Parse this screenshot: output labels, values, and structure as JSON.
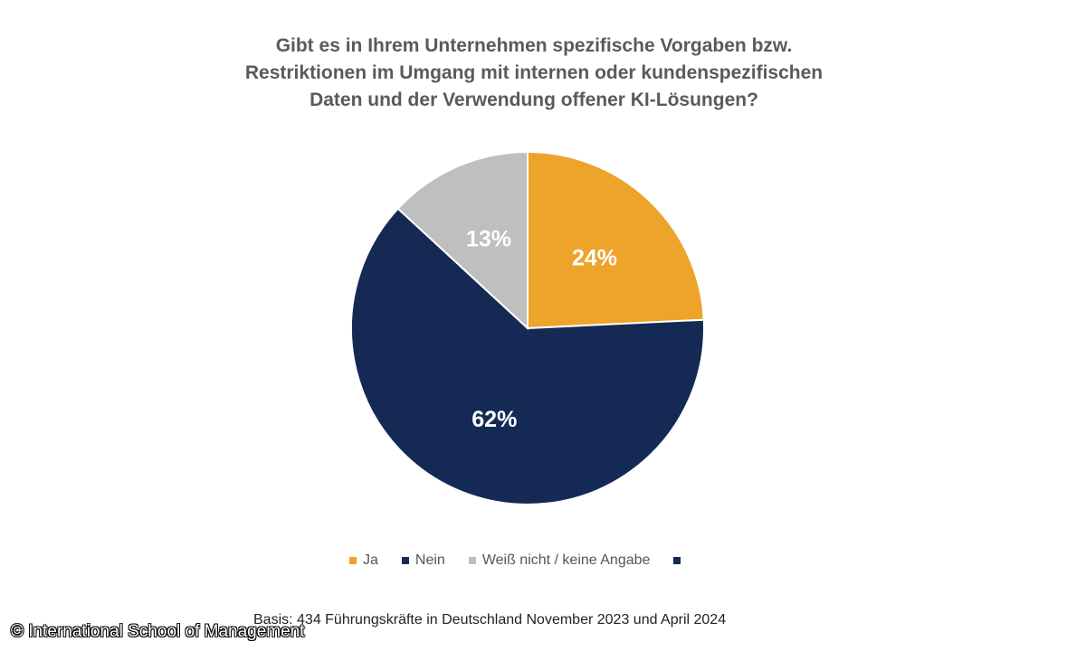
{
  "chart_data": {
    "type": "pie",
    "title_lines": [
      "Gibt es in Ihrem Unternehmen spezifische Vorgaben bzw.",
      "Restriktionen im Umgang mit internen oder kundenspezifischen",
      "Daten und der Verwendung offener KI-Lösungen?"
    ],
    "slices": [
      {
        "name": "Ja",
        "value": 24,
        "label": "24%",
        "color": "#eea32a"
      },
      {
        "name": "Nein",
        "value": 62,
        "label": "62%",
        "color": "#142a55"
      },
      {
        "name": "Weiß nicht / keine Angabe",
        "value": 13,
        "label": "13%",
        "color": "#bfbfbf"
      }
    ],
    "legend": [
      {
        "label": "Ja",
        "color": "#eea32a"
      },
      {
        "label": "Nein",
        "color": "#142a55"
      },
      {
        "label": "Weiß nicht / keine Angabe",
        "color": "#bfbfbf"
      },
      {
        "label": "",
        "color": "#142a55"
      }
    ],
    "legend_position": "bottom",
    "start_angle_deg": 0,
    "direction": "clockwise"
  },
  "footer": {
    "basis": "Basis: 434 Führungskräfte in Deutschland November 2023 und April 2024"
  },
  "watermark": {
    "text": "© International School of Management"
  }
}
